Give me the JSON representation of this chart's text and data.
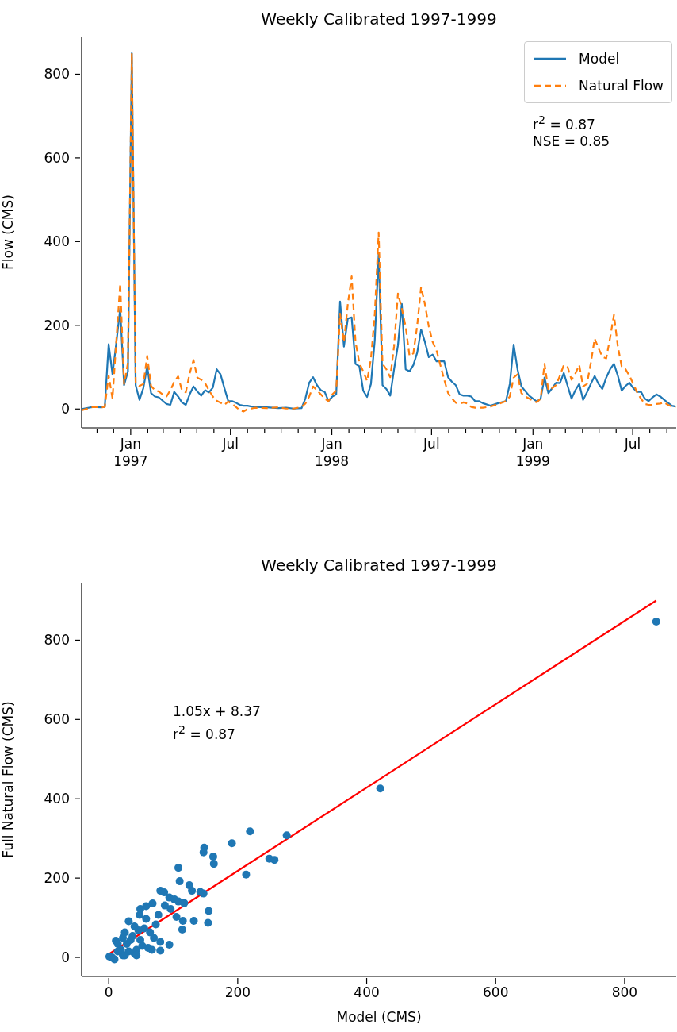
{
  "chart_data": [
    {
      "type": "line",
      "title": "Weekly Calibrated 1997-1999",
      "ylabel": "Flow (CMS)",
      "legend": "top right",
      "annotations": [
        "r$^{2}$ = 0.87",
        "NSE = 0.85"
      ],
      "xlim": [
        "1996-10-04",
        "1999-09-18"
      ],
      "ylim": [
        -45,
        890
      ],
      "yticks": [
        0,
        200,
        400,
        600,
        800
      ],
      "xticks": [
        {
          "value": "1996-11-01",
          "label": null
        },
        {
          "value": "1996-12-01",
          "label": null
        },
        {
          "value": "1997-01-01",
          "label": "Jan\n1997"
        },
        {
          "value": "1997-02-01",
          "label": null
        },
        {
          "value": "1997-03-01",
          "label": null
        },
        {
          "value": "1997-04-01",
          "label": null
        },
        {
          "value": "1997-05-01",
          "label": null
        },
        {
          "value": "1997-06-01",
          "label": null
        },
        {
          "value": "1997-07-01",
          "label": "Jul"
        },
        {
          "value": "1997-08-01",
          "label": null
        },
        {
          "value": "1997-09-01",
          "label": null
        },
        {
          "value": "1997-10-01",
          "label": null
        },
        {
          "value": "1997-11-01",
          "label": null
        },
        {
          "value": "1997-12-01",
          "label": null
        },
        {
          "value": "1998-01-01",
          "label": "Jan\n1998"
        },
        {
          "value": "1998-02-01",
          "label": null
        },
        {
          "value": "1998-03-01",
          "label": null
        },
        {
          "value": "1998-04-01",
          "label": null
        },
        {
          "value": "1998-05-01",
          "label": null
        },
        {
          "value": "1998-06-01",
          "label": null
        },
        {
          "value": "1998-07-01",
          "label": "Jul"
        },
        {
          "value": "1998-08-01",
          "label": null
        },
        {
          "value": "1998-09-01",
          "label": null
        },
        {
          "value": "1998-10-01",
          "label": null
        },
        {
          "value": "1998-11-01",
          "label": null
        },
        {
          "value": "1998-12-01",
          "label": null
        },
        {
          "value": "1999-01-01",
          "label": "Jan\n1999"
        },
        {
          "value": "1999-02-01",
          "label": null
        },
        {
          "value": "1999-03-01",
          "label": null
        },
        {
          "value": "1999-04-01",
          "label": null
        },
        {
          "value": "1999-05-01",
          "label": null
        },
        {
          "value": "1999-06-01",
          "label": null
        },
        {
          "value": "1999-07-01",
          "label": "Jul"
        },
        {
          "value": "1999-08-01",
          "label": null
        },
        {
          "value": "1999-09-01",
          "label": null
        }
      ],
      "x": [
        "1996-10-04",
        "1996-10-25",
        "1996-11-08",
        "1996-11-15",
        "1996-11-22",
        "1996-11-29",
        "1996-12-06",
        "1996-12-13",
        "1996-12-20",
        "1996-12-27",
        "1997-01-03",
        "1997-01-10",
        "1997-01-17",
        "1997-01-24",
        "1997-01-31",
        "1997-02-07",
        "1997-02-14",
        "1997-02-21",
        "1997-02-28",
        "1997-03-07",
        "1997-03-14",
        "1997-03-21",
        "1997-03-28",
        "1997-04-04",
        "1997-04-11",
        "1997-04-18",
        "1997-04-25",
        "1997-05-02",
        "1997-05-09",
        "1997-05-16",
        "1997-05-23",
        "1997-05-30",
        "1997-06-06",
        "1997-06-13",
        "1997-06-20",
        "1997-06-27",
        "1997-07-04",
        "1997-07-11",
        "1997-07-18",
        "1997-07-25",
        "1997-08-01",
        "1997-08-08",
        "1997-08-15",
        "1997-09-05",
        "1997-09-26",
        "1997-10-10",
        "1997-10-24",
        "1997-11-07",
        "1997-11-14",
        "1997-11-21",
        "1997-11-28",
        "1997-12-05",
        "1997-12-12",
        "1997-12-19",
        "1997-12-26",
        "1998-01-02",
        "1998-01-09",
        "1998-01-16",
        "1998-01-23",
        "1998-01-30",
        "1998-02-06",
        "1998-02-13",
        "1998-02-20",
        "1998-02-27",
        "1998-03-06",
        "1998-03-13",
        "1998-03-20",
        "1998-03-27",
        "1998-04-03",
        "1998-04-10",
        "1998-04-17",
        "1998-04-24",
        "1998-05-01",
        "1998-05-08",
        "1998-05-15",
        "1998-05-22",
        "1998-05-29",
        "1998-06-05",
        "1998-06-12",
        "1998-06-19",
        "1998-06-26",
        "1998-07-03",
        "1998-07-10",
        "1998-07-17",
        "1998-07-24",
        "1998-07-31",
        "1998-08-07",
        "1998-08-14",
        "1998-08-21",
        "1998-08-28",
        "1998-09-04",
        "1998-09-11",
        "1998-09-18",
        "1998-09-25",
        "1998-10-02",
        "1998-10-16",
        "1998-10-30",
        "1998-11-13",
        "1998-11-20",
        "1998-11-27",
        "1998-12-04",
        "1998-12-11",
        "1998-12-18",
        "1998-12-25",
        "1999-01-01",
        "1999-01-08",
        "1999-01-15",
        "1999-01-22",
        "1999-01-29",
        "1999-02-05",
        "1999-02-12",
        "1999-02-19",
        "1999-02-26",
        "1999-03-05",
        "1999-03-12",
        "1999-03-19",
        "1999-03-26",
        "1999-04-02",
        "1999-04-09",
        "1999-04-16",
        "1999-04-23",
        "1999-04-30",
        "1999-05-07",
        "1999-05-14",
        "1999-05-21",
        "1999-05-28",
        "1999-06-04",
        "1999-06-11",
        "1999-06-18",
        "1999-06-25",
        "1999-07-02",
        "1999-07-09",
        "1999-07-16",
        "1999-07-23",
        "1999-07-30",
        "1999-08-06",
        "1999-08-13",
        "1999-08-20",
        "1999-08-27",
        "1999-09-03",
        "1999-09-10",
        "1999-09-17"
      ],
      "series": [
        {
          "name": "Model",
          "color": "#1f77b4",
          "line_style": "solid",
          "values": [
            0,
            5,
            4,
            5,
            155,
            83,
            159,
            240,
            57,
            90,
            850,
            57,
            22,
            50,
            102,
            38,
            30,
            28,
            20,
            12,
            10,
            41,
            30,
            16,
            10,
            35,
            54,
            42,
            32,
            45,
            40,
            51,
            95,
            83,
            50,
            19,
            19,
            15,
            10,
            8,
            8,
            6,
            5,
            4,
            2,
            3,
            1,
            2,
            25,
            63,
            76,
            57,
            45,
            41,
            19,
            30,
            35,
            257,
            149,
            216,
            219,
            108,
            102,
            44,
            29,
            60,
            165,
            370,
            57,
            48,
            32,
            95,
            152,
            251,
            95,
            90,
            105,
            135,
            190,
            160,
            124,
            130,
            114,
            114,
            114,
            76,
            65,
            57,
            35,
            32,
            32,
            30,
            19,
            19,
            14,
            8,
            14,
            19,
            60,
            154,
            95,
            54,
            43,
            32,
            25,
            18,
            25,
            75,
            38,
            50,
            63,
            62,
            86,
            55,
            25,
            45,
            60,
            22,
            40,
            60,
            79,
            60,
            48,
            75,
            95,
            108,
            80,
            44,
            55,
            63,
            50,
            41,
            41,
            25,
            19,
            28,
            35,
            30,
            22,
            15,
            8,
            6
          ]
        },
        {
          "name": "Natural Flow",
          "color": "#ff7f0e",
          "line_style": "dashed",
          "values": [
            -3,
            5,
            4,
            5,
            80,
            25,
            165,
            300,
            60,
            110,
            850,
            60,
            55,
            60,
            127,
            55,
            45,
            42,
            35,
            30,
            45,
            65,
            78,
            45,
            40,
            85,
            117,
            75,
            70,
            62,
            45,
            30,
            20,
            15,
            10,
            18,
            12,
            5,
            -3,
            -6,
            0,
            1,
            3,
            2,
            4,
            1,
            1,
            5,
            13,
            30,
            54,
            45,
            35,
            25,
            19,
            35,
            44,
            228,
            159,
            250,
            317,
            160,
            110,
            90,
            67,
            120,
            228,
            422,
            108,
            95,
            76,
            150,
            276,
            240,
            197,
            127,
            133,
            200,
            292,
            250,
            197,
            160,
            140,
            105,
            70,
            38,
            25,
            15,
            13,
            16,
            13,
            5,
            3,
            3,
            3,
            6,
            12,
            19,
            30,
            75,
            83,
            38,
            30,
            25,
            20,
            16,
            25,
            108,
            45,
            50,
            57,
            80,
            105,
            100,
            70,
            85,
            105,
            54,
            60,
            110,
            168,
            145,
            125,
            121,
            170,
            225,
            150,
            102,
            95,
            80,
            60,
            40,
            25,
            12,
            10,
            10,
            12,
            13,
            16,
            10,
            6,
            5
          ]
        }
      ]
    },
    {
      "type": "scatter",
      "title": "Weekly Calibrated 1997-1999",
      "xlabel": "Model (CMS)",
      "ylabel": "Full Natural Flow (CMS)",
      "marker": "circle",
      "annotations": [
        "1.05x + 8.37",
        "r$^{2}$ = 0.87"
      ],
      "xlim": [
        -42,
        880
      ],
      "ylim": [
        -48,
        945
      ],
      "xticks": [
        0,
        200,
        400,
        600,
        800
      ],
      "yticks": [
        0,
        200,
        400,
        600,
        800
      ],
      "series": [
        {
          "color": "#1f77b4",
          "x": [
            849,
            421,
            219,
            276,
            191,
            148,
            147,
            162,
            163,
            249,
            257,
            213,
            108,
            110,
            125,
            129,
            147,
            80,
            86,
            94,
            108,
            117,
            155,
            154,
            132,
            114,
            115,
            105,
            77,
            87,
            68,
            58,
            49,
            48,
            58,
            31,
            25,
            11,
            14,
            64,
            70,
            80,
            94,
            80,
            61,
            43,
            40,
            22,
            5,
            1,
            9,
            31,
            49,
            40,
            55,
            37,
            19,
            28,
            14,
            25,
            43,
            52,
            67,
            34,
            22,
            46,
            73,
            96,
            102,
            142
          ],
          "values": [
            847,
            426,
            318,
            308,
            288,
            277,
            265,
            254,
            236,
            249,
            246,
            209,
            226,
            192,
            182,
            168,
            161,
            168,
            164,
            151,
            141,
            137,
            117,
            87,
            92,
            70,
            92,
            102,
            107,
            131,
            136,
            129,
            122,
            107,
            97,
            91,
            63,
            42,
            34,
            63,
            49,
            39,
            32,
            17,
            24,
            19,
            10,
            5,
            0,
            2,
            -5,
            15,
            44,
            78,
            73,
            54,
            19,
            34,
            15,
            5,
            5,
            29,
            19,
            44,
            49,
            68,
            83,
            122,
            146,
            165
          ]
        },
        {
          "type": "line",
          "marker": "none",
          "color": "#ff0000",
          "x": [
            0,
            849
          ],
          "values": [
            8,
            900
          ]
        }
      ]
    }
  ]
}
